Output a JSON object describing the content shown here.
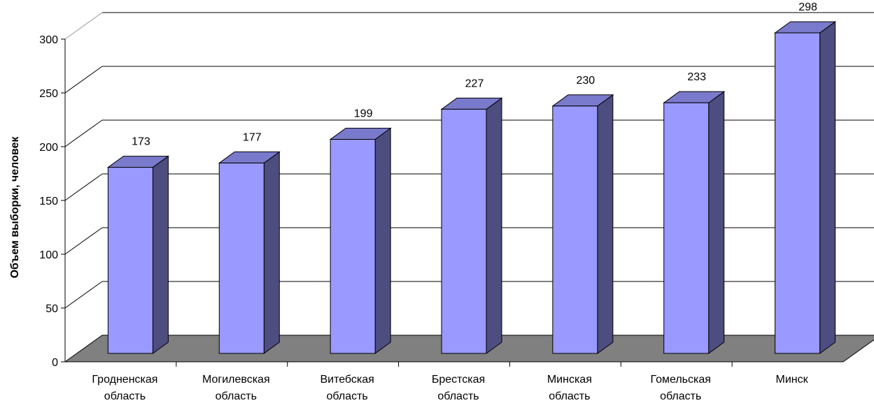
{
  "chart_data": {
    "type": "bar",
    "title": "",
    "xlabel": "",
    "ylabel": "Объем выборки, человек",
    "categories": [
      [
        "Гродненская",
        "область"
      ],
      [
        "Могилевская",
        "область"
      ],
      [
        "Витебская",
        "область"
      ],
      [
        "Брестская",
        "область"
      ],
      [
        "Минская",
        "область"
      ],
      [
        "Гомельская",
        "область"
      ],
      [
        "Минск"
      ]
    ],
    "values": [
      173,
      177,
      199,
      227,
      230,
      233,
      298
    ],
    "ylim": [
      0,
      300
    ],
    "yticks": [
      0,
      50,
      100,
      150,
      200,
      250,
      300
    ],
    "grid": true,
    "three_d": true,
    "colors": {
      "bar_front": "#9999ff",
      "bar_side": "#4d4d80",
      "bar_top": "#7a7acc",
      "floor": "#808080",
      "grid": "#000000"
    }
  }
}
